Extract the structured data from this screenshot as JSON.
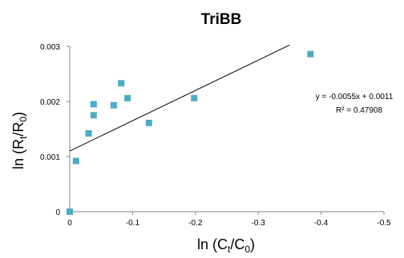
{
  "chart_data": {
    "type": "scatter",
    "title": "TriBB",
    "xlabel_parts": [
      "ln (C",
      "t",
      "/C",
      "0",
      ")"
    ],
    "ylabel_parts": [
      "ln (R",
      "t",
      "/R",
      "0",
      ")"
    ],
    "xlim": [
      0,
      -0.5
    ],
    "ylim": [
      0,
      0.003
    ],
    "x_ticks": [
      0,
      -0.1,
      -0.2,
      -0.3,
      -0.4,
      -0.5
    ],
    "x_tick_labels": [
      "0",
      "-0.1",
      "-0.2",
      "-0.3",
      "-0.4",
      "-0.5"
    ],
    "y_ticks": [
      0,
      0.001,
      0.002,
      0.003
    ],
    "y_tick_labels": [
      "0",
      "0.001",
      "0.002",
      "0.003"
    ],
    "grid": false,
    "marker_color": "#4bacc6",
    "line_color": "#000000",
    "series": [
      {
        "points": [
          [
            0.0,
            0.0
          ],
          [
            -0.01,
            0.00092
          ],
          [
            -0.03,
            0.00142
          ],
          [
            -0.038,
            0.00175
          ],
          [
            -0.038,
            0.00195
          ],
          [
            -0.07,
            0.00193
          ],
          [
            -0.082,
            0.00233
          ],
          [
            -0.092,
            0.00206
          ],
          [
            -0.126,
            0.00161
          ],
          [
            -0.198,
            0.00206
          ],
          [
            -0.383,
            0.00286
          ]
        ]
      }
    ],
    "trendline": {
      "slope": -0.0055,
      "intercept": 0.0011,
      "x_range": [
        0,
        -0.35
      ],
      "equation": "y = -0.0055x + 0.0011",
      "r_squared": "R² = 0.47908"
    }
  }
}
